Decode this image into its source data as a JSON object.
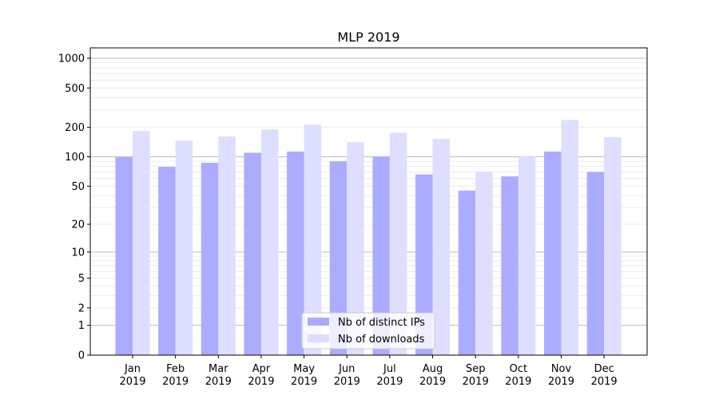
{
  "chart_data": {
    "type": "bar",
    "title": "MLP 2019",
    "xlabel": "",
    "ylabel": "",
    "yscale": "log(1+y)",
    "ylim": [
      0,
      1273
    ],
    "grid": true,
    "legend_position": "lower center",
    "categories": [
      "Jan\n2019",
      "Feb\n2019",
      "Mar\n2019",
      "Apr\n2019",
      "May\n2019",
      "Jun\n2019",
      "Jul\n2019",
      "Aug\n2019",
      "Sep\n2019",
      "Oct\n2019",
      "Nov\n2019",
      "Dec\n2019"
    ],
    "yticks": [
      0,
      1,
      2,
      5,
      10,
      20,
      50,
      100,
      200,
      500,
      1000
    ],
    "series": [
      {
        "name": "Nb of distinct IPs",
        "color": "#aaaaff",
        "values": [
          99,
          79,
          87,
          110,
          113,
          90,
          101,
          66,
          45,
          63,
          113,
          70
        ]
      },
      {
        "name": "Nb of downloads",
        "color": "#ddddff",
        "values": [
          183,
          146,
          161,
          190,
          212,
          141,
          176,
          152,
          70,
          102,
          237,
          158
        ]
      }
    ]
  }
}
